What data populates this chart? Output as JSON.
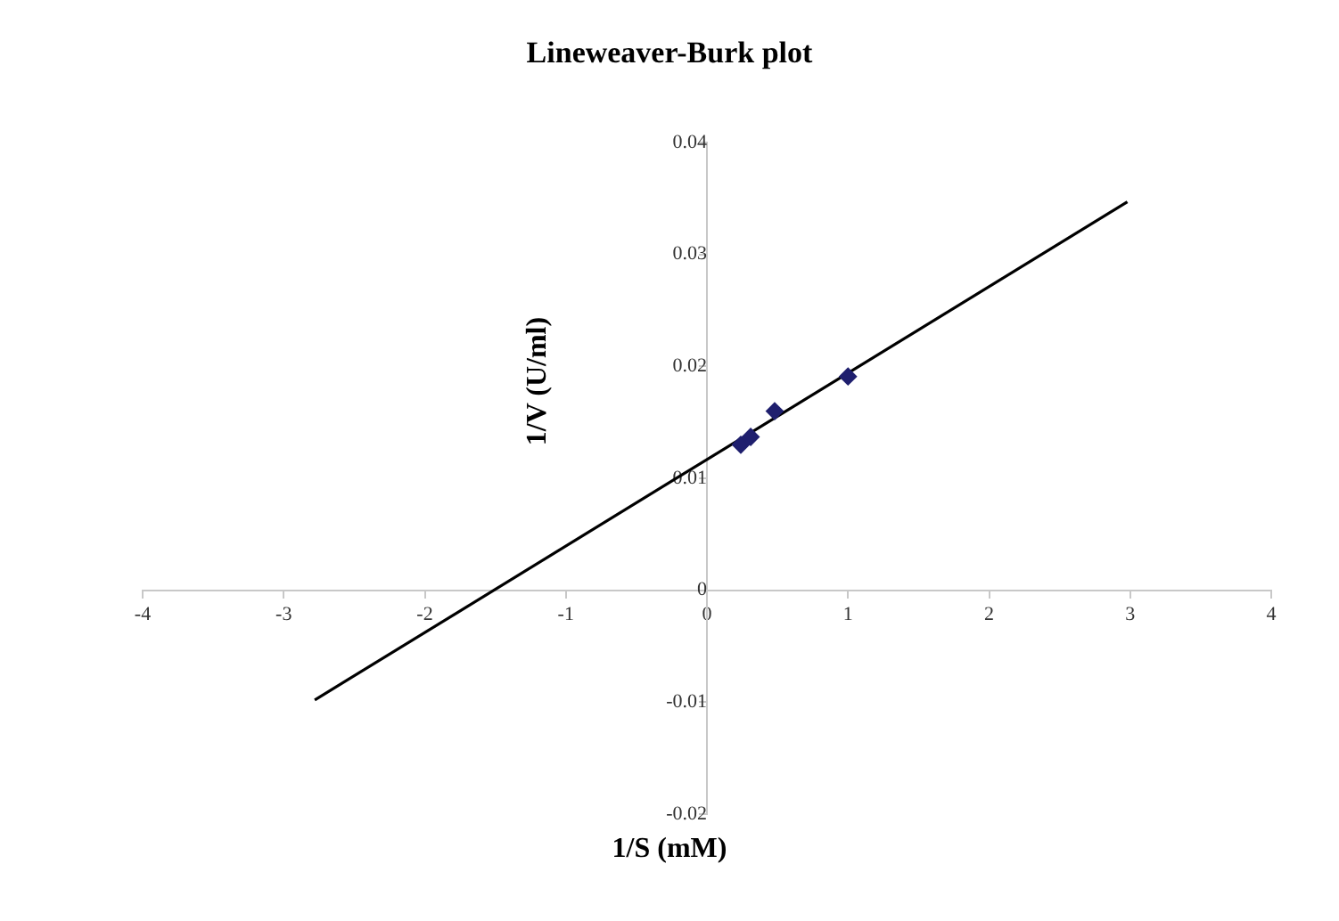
{
  "chart_data": {
    "type": "scatter",
    "title": "Lineweaver-Burk plot",
    "xlabel": "1/S (mM)",
    "ylabel": "1/V (U/ml)",
    "series": [
      {
        "color": "#1f1f6e",
        "x": [
          0.24,
          0.31,
          0.48,
          1.0
        ],
        "values": [
          0.013,
          0.0137,
          0.016,
          0.0191
        ],
        "marker": "diamond"
      },
      {
        "type": "line",
        "color": "#000000",
        "x": [
          -2.78,
          2.98
        ],
        "values": [
          -0.0098,
          0.0347
        ],
        "marker": "none",
        "line_style": "solid"
      }
    ],
    "xlim": [
      -4,
      4
    ],
    "xticks": [
      -4,
      -3,
      -2,
      -1,
      0,
      1,
      2,
      3,
      4
    ],
    "ylim": [
      -0.02,
      0.04
    ],
    "yticks": [
      -0.02,
      -0.01,
      0,
      0.01,
      0.02,
      0.03,
      0.04
    ],
    "grid": false,
    "legend": false
  }
}
